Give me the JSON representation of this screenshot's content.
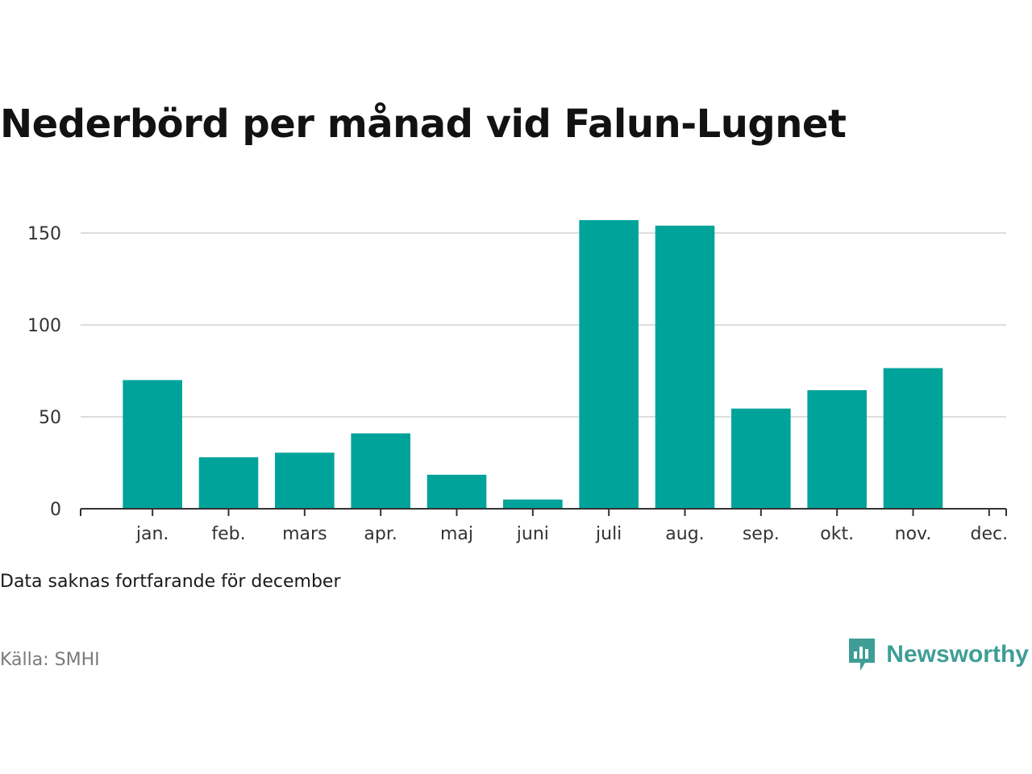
{
  "title": "Nederbörd per månad vid Falun-Lugnet",
  "note": "Data saknas fortfarande för december",
  "source": "Källa: SMHI",
  "brand": {
    "name": "Newsworthy",
    "icon": "newsworthy-logo-icon",
    "color": "#3e9e95"
  },
  "chart_data": {
    "type": "bar",
    "categories": [
      "jan.",
      "feb.",
      "mars",
      "apr.",
      "maj",
      "juni",
      "juli",
      "aug.",
      "sep.",
      "okt.",
      "nov.",
      "dec."
    ],
    "values": [
      70,
      28,
      30.5,
      41,
      18.5,
      5,
      157,
      154,
      54.5,
      64.5,
      76.5,
      null
    ],
    "ylim": [
      0,
      170
    ],
    "yticks": [
      0,
      50,
      100,
      150
    ],
    "grid": true,
    "bar_color": "#00a39a",
    "title": "Nederbörd per månad vid Falun-Lugnet",
    "xlabel": "",
    "ylabel": ""
  }
}
